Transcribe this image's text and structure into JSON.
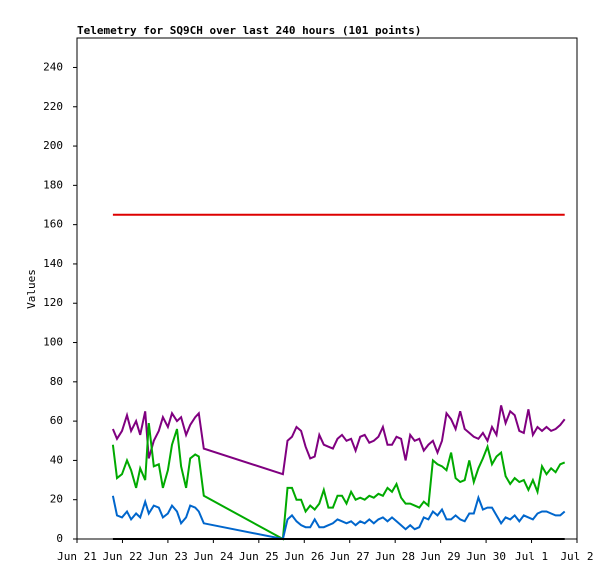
{
  "chart_data": {
    "type": "line",
    "title": "Telemetry for SQ9CH over last 240 hours (101 points)",
    "y_label": "Values",
    "xlim": [
      0,
      11
    ],
    "xticks": [
      {
        "value": 0,
        "label": "Jun 21"
      },
      {
        "value": 1,
        "label": "Jun 22"
      },
      {
        "value": 2,
        "label": "Jun 23"
      },
      {
        "value": 3,
        "label": "Jun 24"
      },
      {
        "value": 4,
        "label": "Jun 25"
      },
      {
        "value": 5,
        "label": "Jun 26"
      },
      {
        "value": 6,
        "label": "Jun 27"
      },
      {
        "value": 7,
        "label": "Jun 28"
      },
      {
        "value": 8,
        "label": "Jun 29"
      },
      {
        "value": 9,
        "label": "Jun 30"
      },
      {
        "value": 10,
        "label": "Jul 1"
      },
      {
        "value": 11,
        "label": "Jul 2"
      }
    ],
    "ylim": [
      0,
      255
    ],
    "yticks": [
      0,
      20,
      40,
      60,
      80,
      100,
      120,
      140,
      160,
      180,
      200,
      220,
      240
    ],
    "x": [
      0.79,
      0.88,
      0.99,
      1.1,
      1.19,
      1.3,
      1.39,
      1.5,
      1.58,
      1.69,
      1.8,
      1.89,
      2.0,
      2.09,
      2.2,
      2.29,
      2.4,
      2.49,
      2.6,
      2.68,
      2.79,
      4.53,
      4.63,
      4.73,
      4.83,
      4.93,
      5.03,
      5.13,
      5.23,
      5.33,
      5.43,
      5.53,
      5.63,
      5.73,
      5.83,
      5.93,
      6.03,
      6.13,
      6.23,
      6.33,
      6.43,
      6.53,
      6.63,
      6.73,
      6.83,
      6.93,
      7.03,
      7.13,
      7.23,
      7.33,
      7.43,
      7.53,
      7.63,
      7.73,
      7.83,
      7.93,
      8.03,
      8.13,
      8.23,
      8.33,
      8.43,
      8.53,
      8.63,
      8.73,
      8.83,
      8.93,
      9.03,
      9.13,
      9.23,
      9.33,
      9.43,
      9.53,
      9.63,
      9.73,
      9.83,
      9.93,
      10.03,
      10.13,
      10.23,
      10.33,
      10.43,
      10.53,
      10.63,
      10.73
    ],
    "series": [
      {
        "color": "#dd0000",
        "values": [
          165,
          165,
          165,
          165,
          165,
          165,
          165,
          165,
          165,
          165,
          165,
          165,
          165,
          165,
          165,
          165,
          165,
          165,
          165,
          165,
          165,
          165,
          165,
          165,
          165,
          165,
          165,
          165,
          165,
          165,
          165,
          165,
          165,
          165,
          165,
          165,
          165,
          165,
          165,
          165,
          165,
          165,
          165,
          165,
          165,
          165,
          165,
          165,
          165,
          165,
          165,
          165,
          165,
          165,
          165,
          165,
          165,
          165,
          165,
          165,
          165,
          165,
          165,
          165,
          165,
          165,
          165,
          165,
          165,
          165,
          165,
          165,
          165,
          165,
          165,
          165,
          165,
          165,
          165,
          165,
          165,
          165,
          165,
          165
        ]
      },
      {
        "color": "#800080",
        "values": [
          56,
          51,
          55,
          63,
          55,
          60,
          53,
          65,
          41,
          50,
          55,
          62,
          57,
          64,
          60,
          62,
          53,
          58,
          62,
          64,
          46,
          33,
          50,
          52,
          57,
          55,
          47,
          41,
          42,
          53,
          48,
          47,
          46,
          51,
          53,
          50,
          51,
          45,
          52,
          53,
          49,
          50,
          52,
          57,
          48,
          48,
          52,
          51,
          40,
          53,
          50,
          51,
          45,
          48,
          50,
          44,
          50,
          64,
          61,
          56,
          65,
          56,
          54,
          52,
          51,
          54,
          50,
          57,
          53,
          68,
          59,
          65,
          63,
          55,
          54,
          66,
          53,
          57,
          55,
          57,
          55,
          56,
          58,
          61
        ]
      },
      {
        "color": "#00aa00",
        "values": [
          48,
          31,
          33,
          40,
          35,
          26,
          36,
          30,
          59,
          37,
          38,
          26,
          35,
          48,
          56,
          37,
          26,
          41,
          43,
          42,
          22,
          0,
          26,
          26,
          20,
          20,
          14,
          17,
          15,
          18,
          25,
          16,
          16,
          22,
          22,
          18,
          24,
          20,
          21,
          20,
          22,
          21,
          23,
          22,
          26,
          24,
          28,
          21,
          18,
          18,
          17,
          16,
          19,
          17,
          40,
          38,
          37,
          35,
          44,
          31,
          29,
          30,
          40,
          29,
          36,
          41,
          47,
          38,
          42,
          44,
          32,
          28,
          31,
          29,
          30,
          25,
          30,
          24,
          37,
          33,
          36,
          34,
          38,
          39
        ]
      },
      {
        "color": "#0066cc",
        "values": [
          22,
          12,
          11,
          14,
          10,
          13,
          11,
          19,
          13,
          17,
          16,
          11,
          13,
          17,
          14,
          8,
          11,
          17,
          16,
          14,
          8,
          0,
          10,
          12,
          9,
          7,
          6,
          6,
          10,
          6,
          6,
          7,
          8,
          10,
          9,
          8,
          9,
          7,
          9,
          8,
          10,
          8,
          10,
          11,
          9,
          11,
          9,
          7,
          5,
          7,
          5,
          6,
          11,
          10,
          14,
          12,
          15,
          10,
          10,
          12,
          10,
          9,
          13,
          13,
          21,
          15,
          16,
          16,
          12,
          8,
          11,
          10,
          12,
          9,
          12,
          11,
          10,
          13,
          14,
          14,
          13,
          12,
          12,
          14
        ]
      },
      {
        "color": "#000000",
        "values": [
          0,
          0,
          0,
          0,
          0,
          0,
          0,
          0,
          0,
          0,
          0,
          0,
          0,
          0,
          0,
          0,
          0,
          0,
          0,
          0,
          0,
          0,
          0,
          0,
          0,
          0,
          0,
          0,
          0,
          0,
          0,
          0,
          0,
          0,
          0,
          0,
          0,
          0,
          0,
          0,
          0,
          0,
          0,
          0,
          0,
          0,
          0,
          0,
          0,
          0,
          0,
          0,
          0,
          0,
          0,
          0,
          0,
          0,
          0,
          0,
          0,
          0,
          0,
          0,
          0,
          0,
          0,
          0,
          0,
          0,
          0,
          0,
          0,
          0,
          0,
          0,
          0,
          0,
          0,
          0,
          0,
          0,
          0,
          0
        ]
      }
    ]
  }
}
